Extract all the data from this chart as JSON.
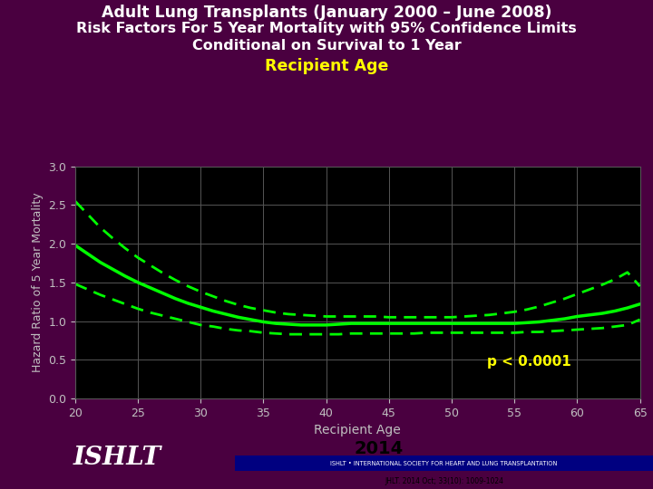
{
  "title_line1": "Adult Lung Transplants (January 2000 – June 2008)",
  "title_line2": "Risk Factors For 5 Year Mortality with 95% Confidence Limits",
  "title_line3": "Conditional on Survival to 1 Year",
  "title_line4": "Recipient Age",
  "xlabel": "Recipient Age",
  "ylabel": "Hazard Ratio of 5 Year Mortality",
  "pvalue": "p < 0.0001",
  "bg_color": "#4a0040",
  "plot_bg_color": "#000000",
  "line_color": "#00ff00",
  "title_color": "#ffffff",
  "subtitle_color": "#ffff00",
  "axis_label_color": "#c0c0c0",
  "tick_label_color": "#c0c0c0",
  "grid_color": "#555555",
  "pvalue_color": "#ffff00",
  "footer_white": "#ffffff",
  "footer_red": "#cc0000",
  "footer_blue": "#000080",
  "year_text": "2014",
  "ishlt_text": "ISHLT • INTERNATIONAL SOCIETY FOR HEART AND LUNG TRANSPLANTATION",
  "jhlt_text": "JHLT. 2014 Oct; 33(10): 1009-1024",
  "ylim": [
    0.0,
    3.0
  ],
  "xlim": [
    20,
    65
  ],
  "yticks": [
    0.0,
    0.5,
    1.0,
    1.5,
    2.0,
    2.5,
    3.0
  ],
  "xticks": [
    20,
    25,
    30,
    35,
    40,
    45,
    50,
    55,
    60,
    65
  ],
  "x_data": [
    20,
    21,
    22,
    23,
    24,
    25,
    26,
    27,
    28,
    29,
    30,
    31,
    32,
    33,
    34,
    35,
    36,
    37,
    38,
    39,
    40,
    41,
    42,
    43,
    44,
    45,
    46,
    47,
    48,
    49,
    50,
    51,
    52,
    53,
    54,
    55,
    56,
    57,
    58,
    59,
    60,
    61,
    62,
    63,
    64,
    65
  ],
  "y_main": [
    1.98,
    1.87,
    1.76,
    1.67,
    1.58,
    1.5,
    1.43,
    1.36,
    1.29,
    1.23,
    1.18,
    1.13,
    1.09,
    1.05,
    1.02,
    0.99,
    0.97,
    0.96,
    0.95,
    0.95,
    0.95,
    0.96,
    0.97,
    0.97,
    0.97,
    0.97,
    0.97,
    0.97,
    0.97,
    0.97,
    0.97,
    0.97,
    0.97,
    0.97,
    0.97,
    0.97,
    0.98,
    0.99,
    1.01,
    1.03,
    1.06,
    1.08,
    1.1,
    1.13,
    1.17,
    1.22
  ],
  "y_upper": [
    2.55,
    2.38,
    2.21,
    2.07,
    1.94,
    1.82,
    1.72,
    1.62,
    1.53,
    1.45,
    1.38,
    1.32,
    1.26,
    1.21,
    1.17,
    1.14,
    1.11,
    1.09,
    1.08,
    1.07,
    1.06,
    1.06,
    1.06,
    1.06,
    1.06,
    1.05,
    1.05,
    1.05,
    1.05,
    1.05,
    1.05,
    1.06,
    1.07,
    1.08,
    1.1,
    1.12,
    1.15,
    1.19,
    1.24,
    1.29,
    1.35,
    1.41,
    1.47,
    1.54,
    1.63,
    1.45
  ],
  "y_lower": [
    1.48,
    1.41,
    1.34,
    1.28,
    1.22,
    1.16,
    1.11,
    1.07,
    1.03,
    0.99,
    0.95,
    0.93,
    0.9,
    0.88,
    0.87,
    0.85,
    0.84,
    0.83,
    0.83,
    0.83,
    0.83,
    0.83,
    0.84,
    0.84,
    0.84,
    0.84,
    0.84,
    0.84,
    0.85,
    0.85,
    0.85,
    0.85,
    0.85,
    0.85,
    0.85,
    0.85,
    0.86,
    0.86,
    0.87,
    0.88,
    0.89,
    0.9,
    0.91,
    0.93,
    0.95,
    1.02
  ]
}
